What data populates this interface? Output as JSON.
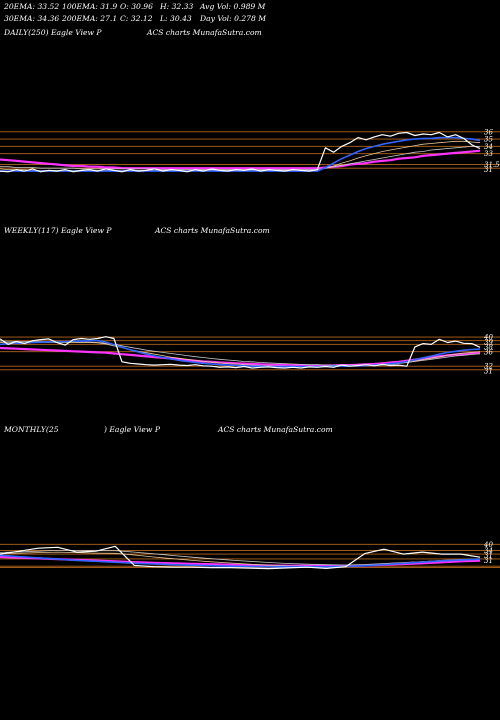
{
  "header": {
    "ema20": "20EMA: 33.52",
    "ema100": "100EMA: 31.9",
    "open": "O: 30.96",
    "high": "H: 32.33",
    "avgvol": "Avg Vol: 0.989 M",
    "ema30": "30EMA: 34.36",
    "ema200": "200EMA: 27.1",
    "close": "C: 32.12",
    "low": "L: 30.43",
    "dayvol": "Day Vol: 0.278  M"
  },
  "panels": {
    "daily": {
      "title": "DAILY(250) Eagle  View  P",
      "credit": "ACS charts MunafaSutra.com"
    },
    "weekly": {
      "title": "WEEKLY(117) Eagle  View  P",
      "credit": "ACS charts MunafaSutra.com"
    },
    "monthly": {
      "title": "MONTHLY(25",
      "title2": ") Eagle  View  P",
      "credit": "ACS charts MunafaSutra.com"
    }
  },
  "colors": {
    "background": "#000000",
    "price": "#ffffff",
    "ema_blue": "#2f63ff",
    "ema_magenta": "#ff33ff",
    "ema_tan": "#e8c898",
    "ema_gray": "#c8c8c8",
    "level_orange": "#b5651d"
  },
  "chart_data": [
    {
      "type": "line",
      "name": "daily",
      "x_count": 60,
      "price": [
        30.6,
        30.5,
        30.8,
        30.6,
        30.9,
        30.5,
        30.7,
        30.6,
        30.8,
        30.5,
        30.7,
        30.8,
        30.6,
        30.9,
        30.7,
        30.5,
        30.8,
        30.6,
        30.7,
        30.9,
        30.6,
        30.8,
        30.7,
        30.5,
        30.8,
        30.6,
        30.9,
        30.7,
        30.6,
        30.8,
        30.7,
        30.9,
        30.6,
        30.8,
        30.7,
        30.6,
        30.8,
        30.7,
        30.6,
        30.8,
        33.8,
        33.2,
        34.0,
        34.5,
        35.2,
        34.9,
        35.3,
        35.6,
        35.4,
        35.8,
        35.9,
        35.5,
        35.7,
        35.6,
        35.9,
        35.3,
        35.6,
        35.1,
        34.2,
        33.7
      ],
      "series": [
        {
          "name": "ema_blue",
          "values": [
            30.6,
            30.6,
            30.6,
            30.6,
            30.6,
            30.6,
            30.6,
            30.6,
            30.6,
            30.6,
            30.6,
            30.6,
            30.6,
            30.6,
            30.6,
            30.6,
            30.6,
            30.6,
            30.6,
            30.6,
            30.6,
            30.6,
            30.6,
            30.6,
            30.6,
            30.6,
            30.6,
            30.6,
            30.6,
            30.6,
            30.6,
            30.6,
            30.6,
            30.6,
            30.6,
            30.6,
            30.6,
            30.6,
            30.6,
            30.6,
            31.1,
            31.7,
            32.3,
            32.8,
            33.3,
            33.7,
            34.0,
            34.3,
            34.5,
            34.7,
            34.9,
            35.0,
            35.1,
            35.1,
            35.2,
            35.2,
            35.2,
            35.1,
            35.0,
            34.8
          ]
        },
        {
          "name": "ema_tan",
          "values": [
            30.9,
            30.8,
            30.8,
            30.8,
            30.7,
            30.7,
            30.7,
            30.7,
            30.7,
            30.7,
            30.7,
            30.7,
            30.7,
            30.7,
            30.7,
            30.7,
            30.7,
            30.7,
            30.7,
            30.7,
            30.7,
            30.7,
            30.7,
            30.7,
            30.7,
            30.7,
            30.7,
            30.7,
            30.7,
            30.7,
            30.7,
            30.7,
            30.7,
            30.7,
            30.7,
            30.7,
            30.7,
            30.7,
            30.7,
            30.7,
            31.0,
            31.3,
            31.7,
            32.0,
            32.4,
            32.7,
            33.0,
            33.3,
            33.5,
            33.7,
            33.9,
            34.1,
            34.3,
            34.4,
            34.5,
            34.6,
            34.7,
            34.7,
            34.6,
            34.5
          ]
        },
        {
          "name": "ema_gray",
          "values": [
            31.2,
            31.2,
            31.1,
            31.1,
            31.1,
            31.0,
            31.0,
            31.0,
            31.0,
            31.0,
            30.9,
            30.9,
            30.9,
            30.9,
            30.9,
            30.9,
            30.9,
            30.9,
            30.9,
            30.9,
            30.8,
            30.8,
            30.8,
            30.8,
            30.8,
            30.8,
            30.8,
            30.8,
            30.8,
            30.8,
            30.8,
            30.8,
            30.8,
            30.8,
            30.8,
            30.8,
            30.8,
            30.8,
            30.8,
            30.8,
            31.0,
            31.2,
            31.4,
            31.6,
            31.8,
            32.0,
            32.2,
            32.4,
            32.6,
            32.8,
            33.0,
            33.2,
            33.3,
            33.5,
            33.6,
            33.7,
            33.8,
            33.9,
            34.0,
            34.0
          ]
        },
        {
          "name": "ema_magenta",
          "values": [
            32.2,
            32.1,
            32.0,
            31.9,
            31.8,
            31.7,
            31.6,
            31.5,
            31.4,
            31.3,
            31.3,
            31.2,
            31.2,
            31.1,
            31.1,
            31.0,
            31.0,
            31.0,
            31.0,
            31.0,
            31.0,
            31.0,
            31.0,
            31.0,
            31.0,
            31.0,
            31.0,
            31.0,
            31.0,
            31.0,
            31.0,
            31.0,
            31.0,
            31.0,
            31.0,
            31.0,
            31.0,
            31.0,
            31.0,
            31.0,
            31.1,
            31.2,
            31.3,
            31.5,
            31.6,
            31.7,
            31.9,
            32.0,
            32.1,
            32.3,
            32.4,
            32.5,
            32.7,
            32.8,
            32.9,
            33.0,
            33.1,
            33.2,
            33.3,
            33.4
          ]
        }
      ],
      "levels": [
        36,
        35,
        34,
        33,
        31.5,
        31
      ],
      "level_labels": [
        "36",
        "35",
        "34",
        "33",
        "31.5",
        "31"
      ],
      "ylim": [
        28,
        39
      ]
    },
    {
      "type": "line",
      "name": "weekly",
      "x_count": 60,
      "price": [
        39.5,
        38.0,
        38.8,
        38.2,
        39.0,
        39.3,
        39.5,
        38.5,
        37.8,
        39.3,
        39.6,
        39.4,
        39.6,
        40.1,
        39.6,
        33.2,
        32.8,
        32.6,
        32.4,
        32.3,
        32.4,
        32.5,
        32.3,
        32.2,
        32.4,
        32.1,
        32.0,
        31.7,
        31.8,
        31.6,
        31.9,
        31.5,
        31.7,
        31.8,
        31.6,
        31.5,
        31.7,
        31.5,
        31.8,
        31.7,
        31.9,
        31.7,
        32.3,
        32.0,
        32.2,
        32.4,
        32.1,
        32.5,
        32.2,
        32.3,
        32.0,
        37.3,
        38.2,
        38.0,
        39.4,
        38.5,
        38.9,
        38.3,
        38.2,
        37.2
      ],
      "series": [
        {
          "name": "ema_blue",
          "values": [
            38.0,
            38.2,
            38.3,
            38.4,
            38.5,
            38.6,
            38.7,
            38.7,
            38.8,
            38.9,
            38.9,
            39.0,
            39.0,
            38.6,
            37.9,
            37.2,
            36.5,
            35.9,
            35.3,
            34.8,
            34.4,
            34.0,
            33.6,
            33.3,
            33.0,
            32.8,
            32.6,
            32.4,
            32.3,
            32.2,
            32.1,
            32.0,
            32.0,
            31.9,
            31.9,
            31.9,
            31.9,
            31.9,
            31.9,
            31.9,
            31.9,
            32.0,
            32.0,
            32.1,
            32.1,
            32.2,
            32.3,
            32.5,
            32.7,
            32.9,
            33.3,
            33.8,
            34.3,
            34.8,
            35.3,
            35.8,
            36.1,
            36.4,
            36.6,
            36.7
          ]
        },
        {
          "name": "ema_tan",
          "values": [
            38.5,
            38.5,
            38.5,
            38.5,
            38.5,
            38.5,
            38.5,
            38.5,
            38.5,
            38.5,
            38.5,
            38.5,
            38.4,
            38.1,
            37.6,
            37.1,
            36.6,
            36.1,
            35.7,
            35.3,
            34.9,
            34.5,
            34.2,
            33.9,
            33.6,
            33.3,
            33.1,
            32.9,
            32.7,
            32.6,
            32.4,
            32.3,
            32.2,
            32.1,
            32.0,
            32.0,
            31.9,
            31.9,
            31.9,
            31.9,
            31.9,
            31.9,
            31.9,
            32.0,
            32.0,
            32.1,
            32.2,
            32.3,
            32.5,
            32.7,
            33.0,
            33.4,
            33.8,
            34.2,
            34.6,
            35.0,
            35.3,
            35.6,
            35.8,
            36.0
          ]
        },
        {
          "name": "ema_gray",
          "values": [
            38.9,
            38.9,
            38.8,
            38.8,
            38.8,
            38.8,
            38.7,
            38.7,
            38.7,
            38.7,
            38.6,
            38.6,
            38.5,
            38.3,
            38.0,
            37.6,
            37.2,
            36.8,
            36.4,
            36.1,
            35.8,
            35.5,
            35.2,
            34.9,
            34.6,
            34.4,
            34.1,
            33.9,
            33.7,
            33.5,
            33.3,
            33.2,
            33.0,
            32.9,
            32.8,
            32.7,
            32.6,
            32.5,
            32.4,
            32.4,
            32.3,
            32.3,
            32.3,
            32.3,
            32.3,
            32.3,
            32.4,
            32.5,
            32.6,
            32.8,
            33.0,
            33.3,
            33.6,
            33.9,
            34.2,
            34.5,
            34.8,
            35.0,
            35.2,
            35.4
          ]
        },
        {
          "name": "ema_magenta",
          "values": [
            37.0,
            36.9,
            36.8,
            36.7,
            36.6,
            36.5,
            36.4,
            36.3,
            36.2,
            36.1,
            36.0,
            35.9,
            35.8,
            35.7,
            35.5,
            35.3,
            35.1,
            34.9,
            34.7,
            34.5,
            34.3,
            34.1,
            33.9,
            33.7,
            33.5,
            33.3,
            33.2,
            33.0,
            32.9,
            32.8,
            32.7,
            32.6,
            32.5,
            32.4,
            32.3,
            32.3,
            32.2,
            32.2,
            32.2,
            32.2,
            32.2,
            32.2,
            32.3,
            32.3,
            32.4,
            32.5,
            32.6,
            32.8,
            33.0,
            33.2,
            33.5,
            33.8,
            34.1,
            34.4,
            34.7,
            35.0,
            35.2,
            35.4,
            35.6,
            35.8
          ]
        }
      ],
      "levels": [
        40,
        39,
        38,
        36,
        32,
        31
      ],
      "level_labels": [
        "40",
        "39",
        "38",
        "36",
        "32",
        "31"
      ],
      "ylim": [
        26,
        48
      ]
    },
    {
      "type": "line",
      "name": "monthly",
      "x_count": 26,
      "price": [
        36.0,
        37.2,
        38.4,
        38.8,
        36.8,
        37.2,
        39.2,
        31.3,
        30.8,
        30.6,
        30.6,
        30.4,
        30.4,
        30.2,
        30.0,
        30.3,
        30.6,
        30.1,
        30.8,
        36.2,
        38.0,
        36.0,
        36.8,
        36.0,
        36.0,
        34.7
      ],
      "series": [
        {
          "name": "ema_blue",
          "values": [
            35.5,
            34.9,
            34.4,
            33.9,
            33.4,
            33.0,
            32.6,
            32.2,
            31.9,
            31.6,
            31.4,
            31.2,
            31.0,
            30.9,
            30.8,
            30.8,
            30.8,
            30.8,
            30.9,
            31.2,
            31.7,
            32.2,
            32.7,
            33.2,
            33.6,
            33.9
          ]
        },
        {
          "name": "ema_tan",
          "values": [
            36.2,
            36.4,
            36.6,
            36.8,
            36.6,
            36.4,
            36.3,
            35.6,
            34.8,
            34.1,
            33.4,
            32.8,
            32.3,
            31.8,
            31.4,
            31.1,
            30.9,
            30.8,
            30.8,
            31.2,
            31.8,
            32.4,
            32.9,
            33.4,
            33.8,
            34.1
          ]
        },
        {
          "name": "ema_gray",
          "values": [
            36.7,
            36.9,
            37.2,
            37.5,
            37.5,
            37.4,
            37.4,
            36.8,
            36.1,
            35.4,
            34.7,
            34.1,
            33.5,
            33.0,
            32.5,
            32.1,
            31.8,
            31.6,
            31.5,
            31.7,
            32.1,
            32.5,
            32.9,
            33.3,
            33.7,
            34.0
          ]
        },
        {
          "name": "ema_magenta",
          "values": [
            34.8,
            34.5,
            34.2,
            33.9,
            33.6,
            33.3,
            33.0,
            32.7,
            32.4,
            32.2,
            32.0,
            31.8,
            31.6,
            31.4,
            31.3,
            31.2,
            31.1,
            31.1,
            31.1,
            31.3,
            31.6,
            31.9,
            32.2,
            32.6,
            33.0,
            33.3
          ]
        }
      ],
      "levels": [
        40,
        37.5,
        36,
        34,
        31,
        30.5
      ],
      "level_labels": [
        "40",
        "34",
        "31",
        "31"
      ],
      "ylim": [
        22,
        55
      ]
    }
  ]
}
